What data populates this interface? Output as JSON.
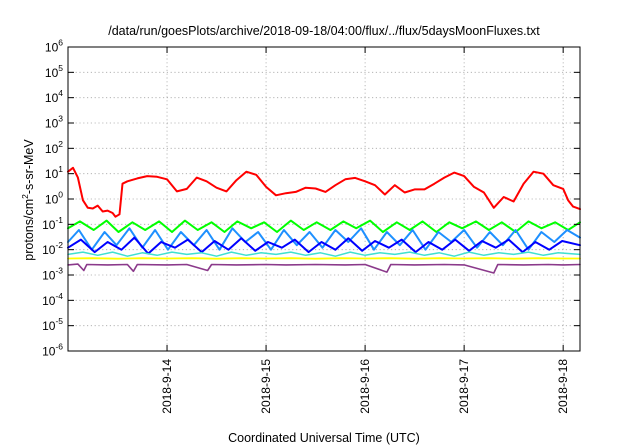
{
  "chart_data": {
    "type": "line",
    "title": "/data/run/goesPlots/archive/2018-09-18/04:00/flux/../flux/5daysMoonFluxes.txt",
    "xlabel": "Coordinated Universal Time (UTC)",
    "ylabel": {
      "prefix": "protons/cm",
      "sup": "2",
      "suffix": "-s-sr-MeV"
    },
    "y_scale": "log",
    "ylim": [
      1e-06,
      1000000.0
    ],
    "y_ticks": [
      {
        "exp": -6,
        "base": "10",
        "sup": "-6"
      },
      {
        "exp": -5,
        "base": "10",
        "sup": "-5"
      },
      {
        "exp": -4,
        "base": "10",
        "sup": "-4"
      },
      {
        "exp": -3,
        "base": "10",
        "sup": "-3"
      },
      {
        "exp": -2,
        "base": "10",
        "sup": "-2"
      },
      {
        "exp": -1,
        "base": "10",
        "sup": "-1"
      },
      {
        "exp": 0,
        "base": "10",
        "sup": "0"
      },
      {
        "exp": 1,
        "base": "10",
        "sup": "1"
      },
      {
        "exp": 2,
        "base": "10",
        "sup": "2"
      },
      {
        "exp": 3,
        "base": "10",
        "sup": "3"
      },
      {
        "exp": 4,
        "base": "10",
        "sup": "4"
      },
      {
        "exp": 5,
        "base": "10",
        "sup": "5"
      },
      {
        "exp": 6,
        "base": "10",
        "sup": "6"
      }
    ],
    "x_unit": "days after 2018-09-13 00:00 UTC",
    "xlim": [
      0.0,
      5.17
    ],
    "x_ticks": [
      {
        "at": 1.0,
        "label": "2018-9-14"
      },
      {
        "at": 2.0,
        "label": "2018-9-15"
      },
      {
        "at": 3.0,
        "label": "2018-9-16"
      },
      {
        "at": 4.0,
        "label": "2018-9-17"
      },
      {
        "at": 5.0,
        "label": "2018-9-18"
      }
    ],
    "grid": true,
    "legend": "none",
    "series": [
      {
        "color": "#ff0000",
        "width": 2.0,
        "points": [
          [
            0.0,
            12
          ],
          [
            0.05,
            17
          ],
          [
            0.1,
            7
          ],
          [
            0.15,
            0.9
          ],
          [
            0.2,
            0.45
          ],
          [
            0.25,
            0.42
          ],
          [
            0.3,
            0.55
          ],
          [
            0.35,
            0.32
          ],
          [
            0.4,
            0.35
          ],
          [
            0.45,
            0.28
          ],
          [
            0.48,
            0.2
          ],
          [
            0.52,
            0.25
          ],
          [
            0.55,
            4
          ],
          [
            0.6,
            5
          ],
          [
            0.7,
            6.5
          ],
          [
            0.8,
            8
          ],
          [
            0.9,
            7.5
          ],
          [
            1.0,
            6
          ],
          [
            1.1,
            2
          ],
          [
            1.2,
            2.5
          ],
          [
            1.3,
            7
          ],
          [
            1.4,
            5
          ],
          [
            1.5,
            2.8
          ],
          [
            1.6,
            2
          ],
          [
            1.7,
            5.5
          ],
          [
            1.8,
            12
          ],
          [
            1.9,
            9
          ],
          [
            2.0,
            3
          ],
          [
            2.1,
            1.4
          ],
          [
            2.2,
            1.7
          ],
          [
            2.3,
            1.9
          ],
          [
            2.4,
            2.8
          ],
          [
            2.5,
            2.6
          ],
          [
            2.6,
            1.9
          ],
          [
            2.7,
            3.5
          ],
          [
            2.8,
            6
          ],
          [
            2.9,
            6.8
          ],
          [
            3.0,
            5
          ],
          [
            3.1,
            3.5
          ],
          [
            3.2,
            1.5
          ],
          [
            3.3,
            3.5
          ],
          [
            3.4,
            1.8
          ],
          [
            3.5,
            2.4
          ],
          [
            3.6,
            2.4
          ],
          [
            3.7,
            4
          ],
          [
            3.8,
            7
          ],
          [
            3.9,
            11
          ],
          [
            4.0,
            8
          ],
          [
            4.1,
            3
          ],
          [
            4.2,
            1.8
          ],
          [
            4.3,
            0.45
          ],
          [
            4.4,
            1.2
          ],
          [
            4.5,
            0.8
          ],
          [
            4.6,
            4
          ],
          [
            4.7,
            12
          ],
          [
            4.8,
            10
          ],
          [
            4.9,
            3.5
          ],
          [
            5.0,
            2.5
          ],
          [
            5.05,
            0.9
          ],
          [
            5.1,
            0.5
          ],
          [
            5.17,
            0.4
          ]
        ]
      },
      {
        "color": "#00ff00",
        "width": 2.0,
        "points": [
          [
            0.0,
            0.07
          ],
          [
            0.12,
            0.13
          ],
          [
            0.26,
            0.06
          ],
          [
            0.39,
            0.14
          ],
          [
            0.51,
            0.05
          ],
          [
            0.65,
            0.12
          ],
          [
            0.78,
            0.06
          ],
          [
            0.92,
            0.13
          ],
          [
            1.05,
            0.05
          ],
          [
            1.18,
            0.14
          ],
          [
            1.31,
            0.06
          ],
          [
            1.45,
            0.12
          ],
          [
            1.58,
            0.05
          ],
          [
            1.71,
            0.13
          ],
          [
            1.85,
            0.07
          ],
          [
            1.98,
            0.12
          ],
          [
            2.11,
            0.05
          ],
          [
            2.25,
            0.14
          ],
          [
            2.38,
            0.06
          ],
          [
            2.51,
            0.12
          ],
          [
            2.65,
            0.06
          ],
          [
            2.78,
            0.13
          ],
          [
            2.91,
            0.07
          ],
          [
            3.05,
            0.14
          ],
          [
            3.18,
            0.05
          ],
          [
            3.32,
            0.12
          ],
          [
            3.45,
            0.06
          ],
          [
            3.58,
            0.13
          ],
          [
            3.72,
            0.05
          ],
          [
            3.85,
            0.12
          ],
          [
            3.98,
            0.07
          ],
          [
            4.12,
            0.13
          ],
          [
            4.25,
            0.06
          ],
          [
            4.38,
            0.12
          ],
          [
            4.52,
            0.05
          ],
          [
            4.65,
            0.13
          ],
          [
            4.78,
            0.07
          ],
          [
            4.92,
            0.12
          ],
          [
            5.05,
            0.06
          ],
          [
            5.17,
            0.12
          ]
        ]
      },
      {
        "color": "#1e90ff",
        "width": 2.0,
        "points": [
          [
            0.0,
            0.02
          ],
          [
            0.11,
            0.06
          ],
          [
            0.24,
            0.01
          ],
          [
            0.37,
            0.05
          ],
          [
            0.49,
            0.015
          ],
          [
            0.62,
            0.07
          ],
          [
            0.75,
            0.012
          ],
          [
            0.88,
            0.06
          ],
          [
            1.01,
            0.01
          ],
          [
            1.14,
            0.05
          ],
          [
            1.27,
            0.015
          ],
          [
            1.4,
            0.06
          ],
          [
            1.53,
            0.01
          ],
          [
            1.66,
            0.07
          ],
          [
            1.79,
            0.02
          ],
          [
            1.92,
            0.05
          ],
          [
            2.05,
            0.01
          ],
          [
            2.18,
            0.06
          ],
          [
            2.31,
            0.015
          ],
          [
            2.44,
            0.05
          ],
          [
            2.57,
            0.012
          ],
          [
            2.7,
            0.06
          ],
          [
            2.83,
            0.02
          ],
          [
            2.96,
            0.07
          ],
          [
            3.09,
            0.01
          ],
          [
            3.22,
            0.05
          ],
          [
            3.35,
            0.015
          ],
          [
            3.48,
            0.06
          ],
          [
            3.61,
            0.01
          ],
          [
            3.74,
            0.05
          ],
          [
            3.87,
            0.02
          ],
          [
            4.0,
            0.06
          ],
          [
            4.13,
            0.012
          ],
          [
            4.26,
            0.05
          ],
          [
            4.39,
            0.015
          ],
          [
            4.52,
            0.06
          ],
          [
            4.65,
            0.01
          ],
          [
            4.78,
            0.05
          ],
          [
            4.91,
            0.02
          ],
          [
            5.04,
            0.06
          ],
          [
            5.17,
            0.03
          ]
        ]
      },
      {
        "color": "#0000ff",
        "width": 2.0,
        "points": [
          [
            0.0,
            0.012
          ],
          [
            0.13,
            0.025
          ],
          [
            0.27,
            0.008
          ],
          [
            0.4,
            0.02
          ],
          [
            0.54,
            0.01
          ],
          [
            0.67,
            0.03
          ],
          [
            0.81,
            0.007
          ],
          [
            0.94,
            0.02
          ],
          [
            1.08,
            0.012
          ],
          [
            1.21,
            0.025
          ],
          [
            1.35,
            0.008
          ],
          [
            1.48,
            0.022
          ],
          [
            1.62,
            0.01
          ],
          [
            1.75,
            0.028
          ],
          [
            1.89,
            0.009
          ],
          [
            2.02,
            0.02
          ],
          [
            2.16,
            0.012
          ],
          [
            2.29,
            0.025
          ],
          [
            2.43,
            0.008
          ],
          [
            2.56,
            0.02
          ],
          [
            2.7,
            0.01
          ],
          [
            2.83,
            0.028
          ],
          [
            2.97,
            0.009
          ],
          [
            3.1,
            0.022
          ],
          [
            3.24,
            0.012
          ],
          [
            3.37,
            0.025
          ],
          [
            3.51,
            0.008
          ],
          [
            3.64,
            0.02
          ],
          [
            3.78,
            0.01
          ],
          [
            3.91,
            0.025
          ],
          [
            4.05,
            0.009
          ],
          [
            4.18,
            0.022
          ],
          [
            4.32,
            0.012
          ],
          [
            4.45,
            0.025
          ],
          [
            4.59,
            0.008
          ],
          [
            4.72,
            0.02
          ],
          [
            4.86,
            0.01
          ],
          [
            4.99,
            0.022
          ],
          [
            5.17,
            0.015
          ]
        ]
      },
      {
        "color": "#40e0d0",
        "width": 1.5,
        "points": [
          [
            0.0,
            0.0065
          ],
          [
            0.15,
            0.008
          ],
          [
            0.3,
            0.006
          ],
          [
            0.45,
            0.008
          ],
          [
            0.6,
            0.0055
          ],
          [
            0.75,
            0.0075
          ],
          [
            0.9,
            0.006
          ],
          [
            1.05,
            0.008
          ],
          [
            1.2,
            0.0065
          ],
          [
            1.35,
            0.0075
          ],
          [
            1.5,
            0.0055
          ],
          [
            1.65,
            0.008
          ],
          [
            1.8,
            0.006
          ],
          [
            1.95,
            0.0075
          ],
          [
            2.1,
            0.0065
          ],
          [
            2.25,
            0.008
          ],
          [
            2.4,
            0.006
          ],
          [
            2.55,
            0.0075
          ],
          [
            2.7,
            0.0055
          ],
          [
            2.85,
            0.008
          ],
          [
            3.0,
            0.006
          ],
          [
            3.15,
            0.0075
          ],
          [
            3.3,
            0.0065
          ],
          [
            3.45,
            0.008
          ],
          [
            3.6,
            0.006
          ],
          [
            3.75,
            0.0075
          ],
          [
            3.9,
            0.0055
          ],
          [
            4.05,
            0.008
          ],
          [
            4.2,
            0.006
          ],
          [
            4.35,
            0.0075
          ],
          [
            4.5,
            0.0065
          ],
          [
            4.65,
            0.008
          ],
          [
            4.8,
            0.006
          ],
          [
            4.95,
            0.0075
          ],
          [
            5.17,
            0.0065
          ]
        ]
      },
      {
        "color": "#ffff00",
        "width": 1.8,
        "points": [
          [
            0.0,
            0.0045
          ],
          [
            0.25,
            0.0046
          ],
          [
            0.5,
            0.0044
          ],
          [
            0.75,
            0.0046
          ],
          [
            1.0,
            0.0045
          ],
          [
            1.25,
            0.0046
          ],
          [
            1.5,
            0.0044
          ],
          [
            1.75,
            0.0046
          ],
          [
            2.0,
            0.0045
          ],
          [
            2.25,
            0.0046
          ],
          [
            2.5,
            0.0044
          ],
          [
            2.75,
            0.0046
          ],
          [
            3.0,
            0.0045
          ],
          [
            3.25,
            0.0046
          ],
          [
            3.5,
            0.0044
          ],
          [
            3.75,
            0.0046
          ],
          [
            4.0,
            0.0045
          ],
          [
            4.25,
            0.0046
          ],
          [
            4.5,
            0.0044
          ],
          [
            4.75,
            0.0046
          ],
          [
            5.0,
            0.0045
          ],
          [
            5.17,
            0.0045
          ]
        ]
      },
      {
        "color": "#8b3a8b",
        "width": 1.6,
        "points": [
          [
            0.0,
            0.0025
          ],
          [
            0.1,
            0.0027
          ],
          [
            0.16,
            0.0015
          ],
          [
            0.19,
            0.0026
          ],
          [
            0.4,
            0.0025
          ],
          [
            0.6,
            0.0026
          ],
          [
            0.66,
            0.0014
          ],
          [
            0.7,
            0.0026
          ],
          [
            1.0,
            0.0025
          ],
          [
            1.2,
            0.0026
          ],
          [
            1.41,
            0.0015
          ],
          [
            1.45,
            0.0026
          ],
          [
            1.7,
            0.0025
          ],
          [
            2.0,
            0.0026
          ],
          [
            2.2,
            0.0025
          ],
          [
            2.5,
            0.0026
          ],
          [
            2.8,
            0.0025
          ],
          [
            3.0,
            0.0026
          ],
          [
            3.22,
            0.0013
          ],
          [
            3.26,
            0.0026
          ],
          [
            3.5,
            0.0025
          ],
          [
            3.8,
            0.0026
          ],
          [
            4.0,
            0.0025
          ],
          [
            4.3,
            0.0012
          ],
          [
            4.34,
            0.0026
          ],
          [
            4.6,
            0.0025
          ],
          [
            4.85,
            0.0026
          ],
          [
            5.0,
            0.0025
          ],
          [
            5.17,
            0.0026
          ]
        ]
      }
    ]
  }
}
